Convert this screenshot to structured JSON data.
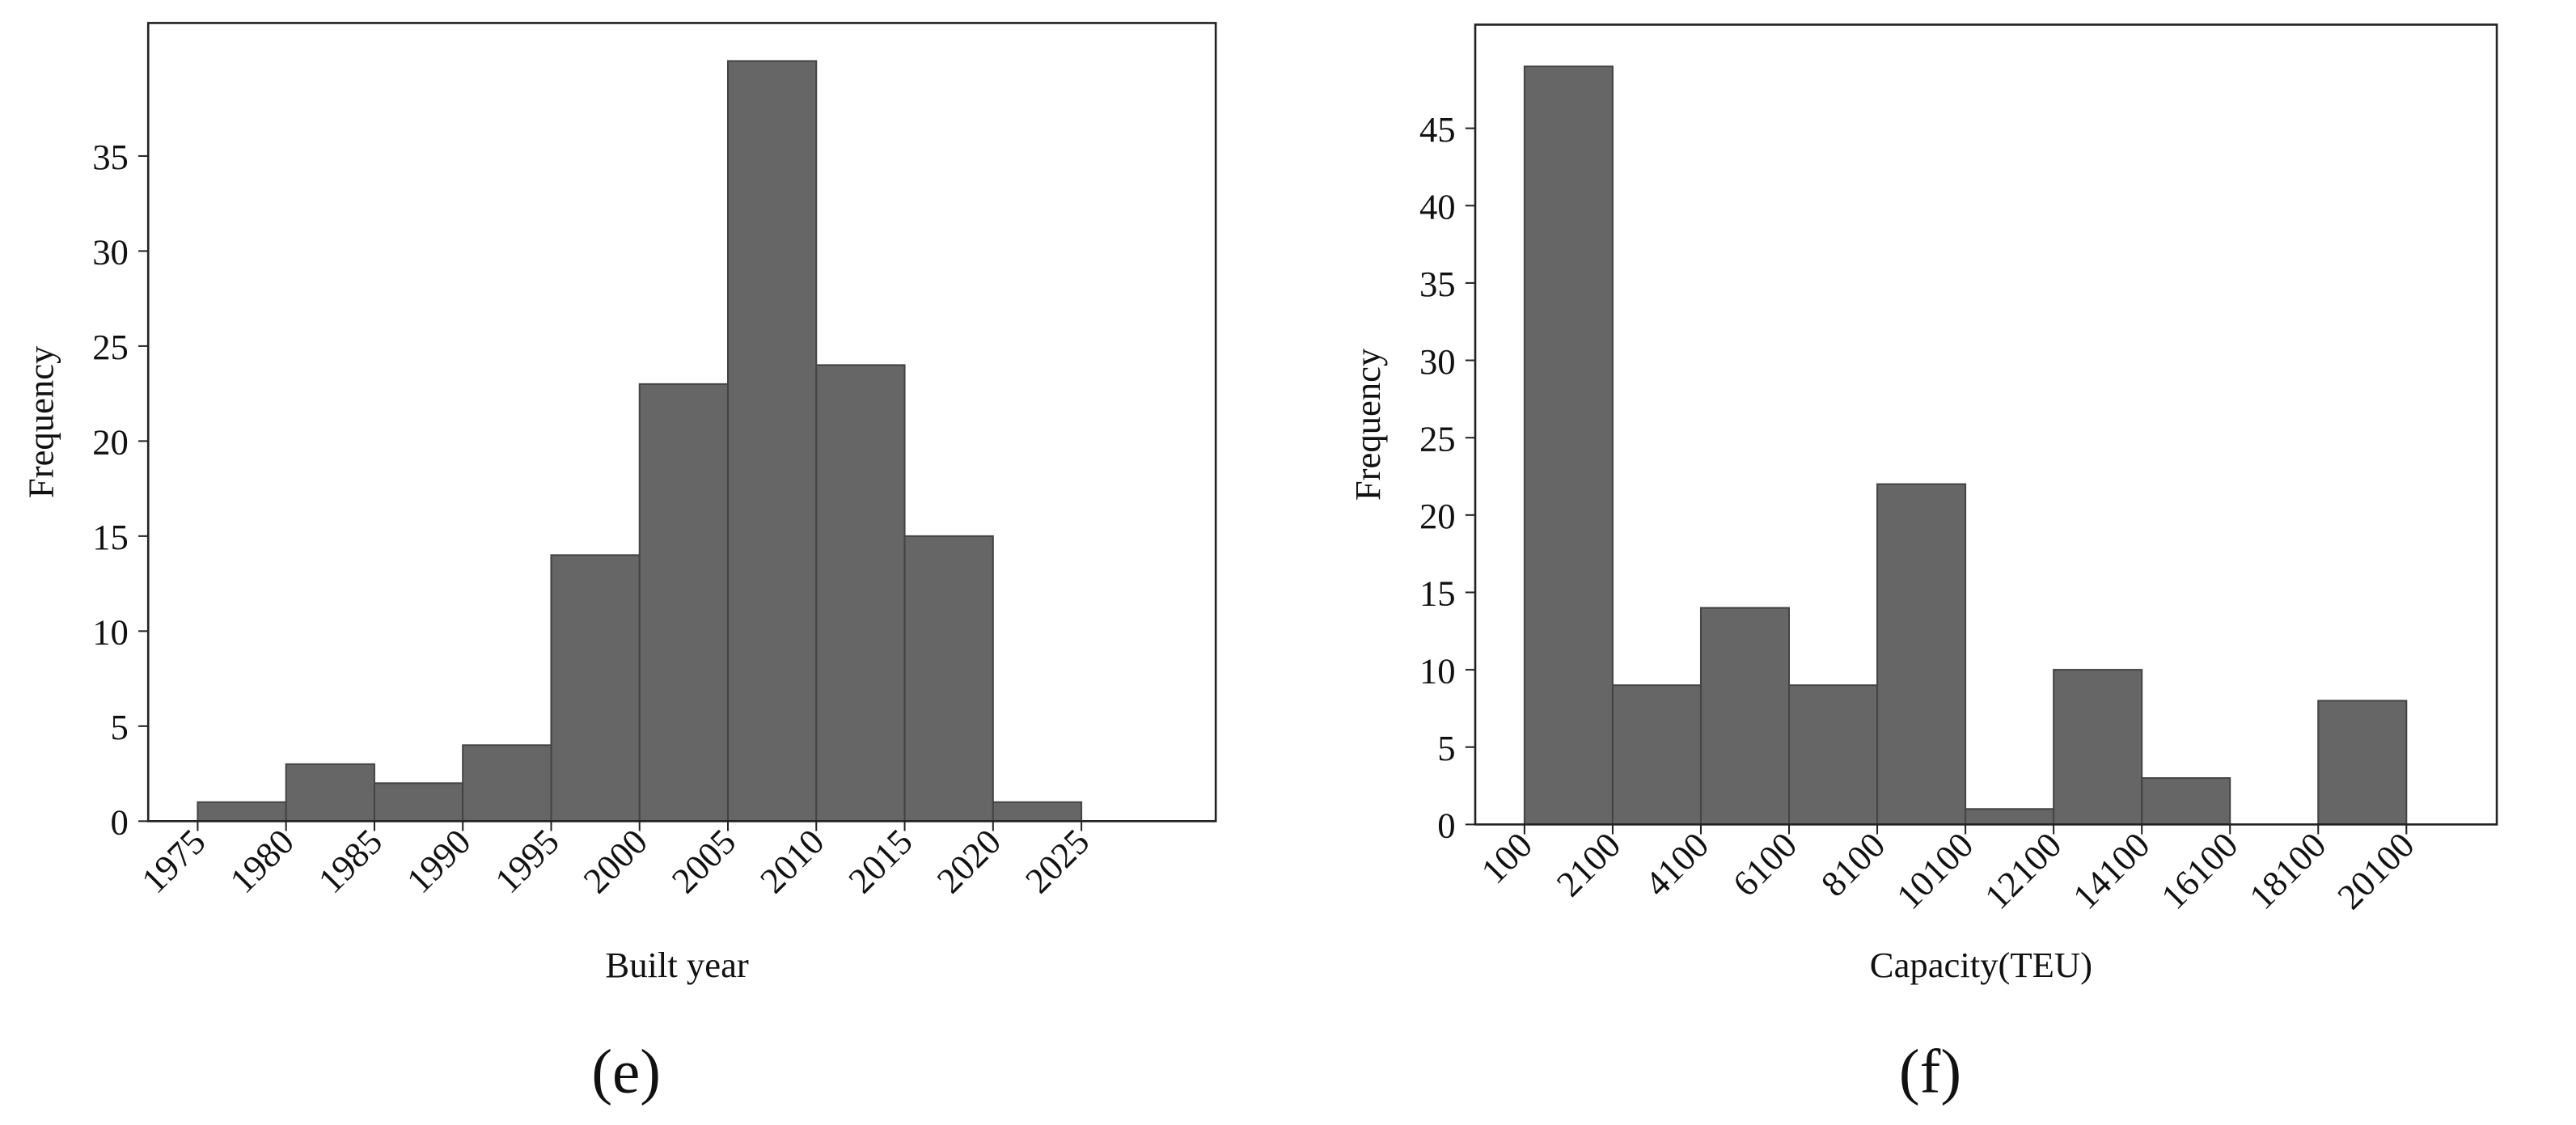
{
  "chart_data": [
    {
      "type": "histogram",
      "panel_label": "(e)",
      "xlabel": "Built year",
      "ylabel": "Frequency",
      "bins": [
        1975,
        1980,
        1985,
        1990,
        1995,
        2000,
        2005,
        2010,
        2015,
        2020,
        2025
      ],
      "values": [
        1,
        3,
        2,
        4,
        14,
        23,
        40,
        24,
        15,
        1
      ],
      "color": "#666666",
      "xlim": [
        1972.2,
        2032.6
      ],
      "ylim": [
        0,
        42
      ],
      "xticks": [
        1975,
        1980,
        1985,
        1990,
        1995,
        2000,
        2005,
        2010,
        2015,
        2020,
        2025
      ],
      "yticks": [
        0,
        5,
        10,
        15,
        20,
        25,
        30,
        35
      ]
    },
    {
      "type": "histogram",
      "panel_label": "(f)",
      "xlabel": "Capacity(TEU)",
      "ylabel": "Frequency",
      "bins": [
        100,
        2100,
        4100,
        6100,
        8100,
        10100,
        12100,
        14100,
        16100,
        18100,
        20100
      ],
      "values": [
        49,
        9,
        14,
        9,
        22,
        1,
        10,
        3,
        0,
        8
      ],
      "color": "#666666",
      "xlim": [
        -1017,
        22150
      ],
      "ylim": [
        0,
        51.7
      ],
      "xticks": [
        100,
        2100,
        4100,
        6100,
        8100,
        10100,
        12100,
        14100,
        16100,
        18100,
        20100
      ],
      "yticks": [
        0,
        5,
        10,
        15,
        20,
        25,
        30,
        35,
        40,
        45
      ]
    }
  ]
}
